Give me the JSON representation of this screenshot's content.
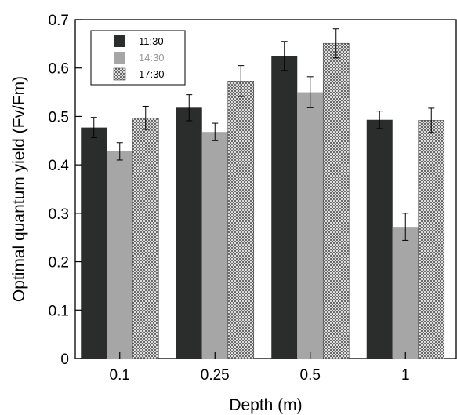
{
  "chart_data": {
    "type": "bar",
    "xlabel": "Depth (m)",
    "ylabel": "Optimal quantum yield (Fv/Fm)",
    "categories": [
      "0.1",
      "0.25",
      "0.5",
      "1"
    ],
    "ylim": [
      0,
      0.7
    ],
    "yticks": [
      "0",
      "0.1",
      "0.2",
      "0.3",
      "0.4",
      "0.5",
      "0.6",
      "0.7"
    ],
    "grid": false,
    "legend_position": "top-left",
    "series": [
      {
        "name": "11:30",
        "values": [
          0.477,
          0.518,
          0.625,
          0.493
        ],
        "errors": [
          0.021,
          0.027,
          0.03,
          0.018
        ],
        "color": "#2b2d2d",
        "text_color": "#000000",
        "pattern": "solid"
      },
      {
        "name": "14:30",
        "values": [
          0.428,
          0.468,
          0.55,
          0.272
        ],
        "errors": [
          0.018,
          0.018,
          0.032,
          0.028
        ],
        "color": "#a6a6a6",
        "text_color": "#9a9a9a",
        "pattern": "solid"
      },
      {
        "name": "17:30",
        "values": [
          0.497,
          0.573,
          0.651,
          0.492
        ],
        "errors": [
          0.024,
          0.032,
          0.03,
          0.025
        ],
        "color": "#ffffff",
        "text_color": "#000000",
        "pattern": "crosshatch"
      }
    ]
  }
}
